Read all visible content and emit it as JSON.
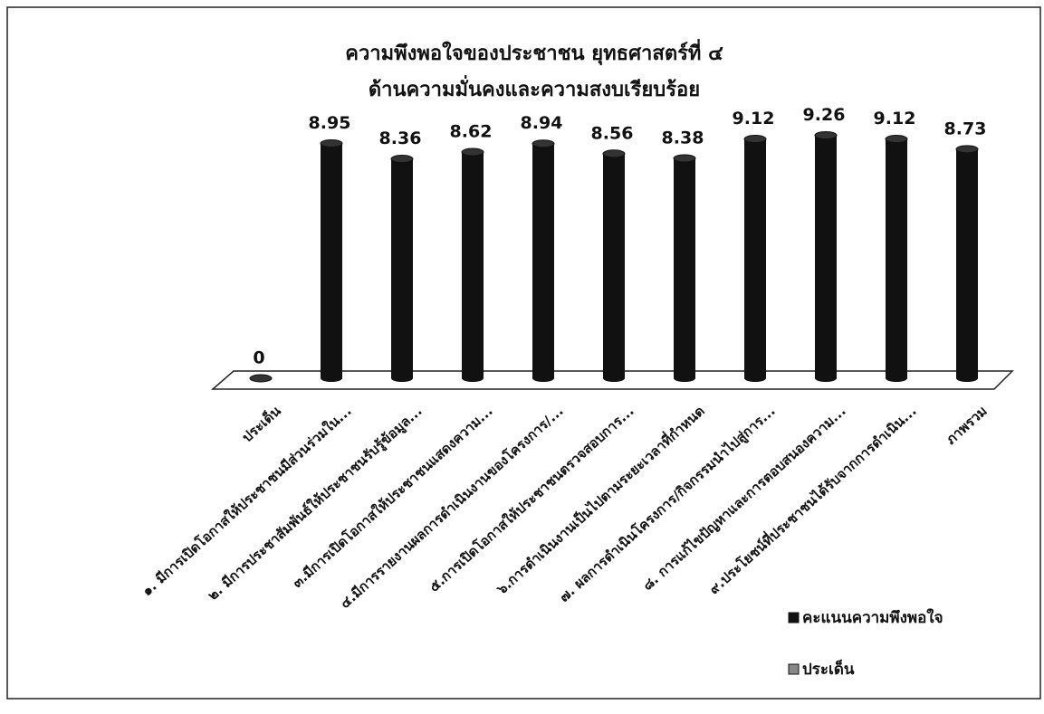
{
  "chart_data": {
    "type": "bar3d",
    "title": "ความพึงพอใจของประชาชน ยุทธศาสตร์ที่ ๔",
    "subtitle": "ด้านความมั่นคงและความสงบเรียบร้อย",
    "categories": [
      "ประเด็น",
      "๑. มีการเปิดโอกาสให้ประชาชนมีส่วนร่วมใน...",
      "๒. มีการประชาสัมพันธ์ให้ประชาชนรับรู้ข้อมูล...",
      "๓.มีการเปิดโอกาสให้ประชาชนแสดงความ...",
      "๔.มีการรายงานผลการดำเนินงานของโครงการ/...",
      "๕.การเปิดโอกาสให้ประชาชนตรวจสอบการ...",
      "๖.การดำเนินงานเป็นไปตามระยะเวลาที่กำหนด",
      "๗. ผลการดำเนินโครงการ/กิจกรรมนำไปสู่การ...",
      "๘. การแก้ไขปัญหาและการตอบสนองความ...",
      "๙.ประโยชน์ที่ประชาชนได้รับจากการดำเนิน...",
      "ภาพรวม"
    ],
    "series": [
      {
        "name": "คะแนนความพึงพอใจ",
        "color": "#111111",
        "values": [
          0,
          8.95,
          8.36,
          8.62,
          8.94,
          8.56,
          8.38,
          9.12,
          9.26,
          9.12,
          8.73
        ]
      },
      {
        "name": "ประเด็น",
        "color": "#888888",
        "values": [
          null,
          null,
          null,
          null,
          null,
          null,
          null,
          null,
          null,
          null,
          null
        ]
      }
    ],
    "ylim": [
      0,
      10
    ]
  }
}
